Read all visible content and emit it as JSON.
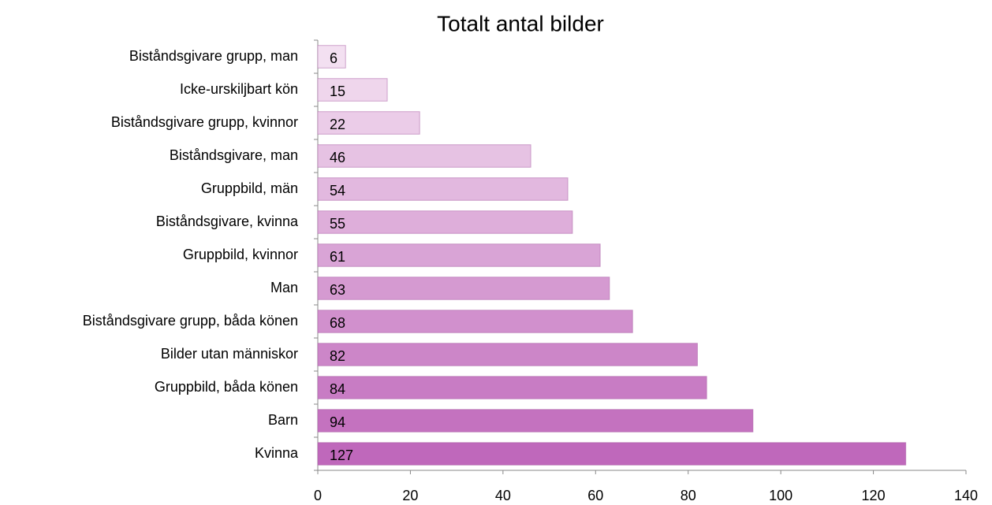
{
  "chart_data": {
    "type": "bar",
    "orientation": "horizontal",
    "title": "Totalt antal bilder",
    "categories": [
      "Biståndsgivare grupp, man",
      "Icke-urskiljbart kön",
      "Biståndsgivare grupp, kvinnor",
      "Biståndsgivare, man",
      "Gruppbild, män",
      "Biståndsgivare, kvinna",
      "Gruppbild, kvinnor",
      "Man",
      "Biståndsgivare grupp, båda könen",
      "Bilder utan människor",
      "Gruppbild, båda könen",
      "Barn",
      "Kvinna"
    ],
    "values": [
      6,
      15,
      22,
      46,
      54,
      55,
      61,
      63,
      68,
      82,
      84,
      94,
      127
    ],
    "colors": [
      "#f3e0f1",
      "#efd6ec",
      "#ebcce8",
      "#e6c2e3",
      "#e2b8df",
      "#deaeda",
      "#d9a4d6",
      "#d59ad1",
      "#d190cd",
      "#cc86c8",
      "#c87cc4",
      "#c472bf",
      "#bf68bb"
    ],
    "xlim": [
      0,
      140
    ],
    "xticks": [
      0,
      20,
      40,
      60,
      80,
      100,
      120,
      140
    ]
  }
}
